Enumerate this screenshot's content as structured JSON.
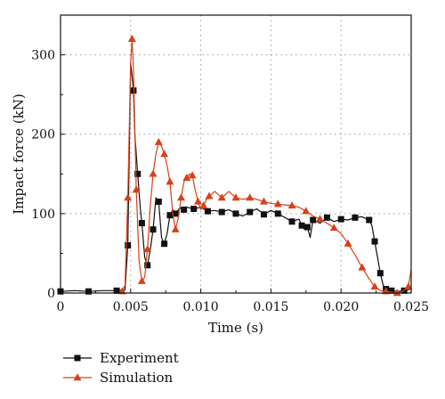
{
  "chart_data": {
    "type": "line",
    "title": "",
    "xlabel": "Time (s)",
    "ylabel": "Impact force (kN)",
    "xlim": [
      0,
      0.025
    ],
    "ylim": [
      0,
      350
    ],
    "x_ticks": [
      0,
      0.005,
      0.01,
      0.015,
      0.02,
      0.025
    ],
    "x_tick_labels": [
      "0",
      "0.005",
      "0.010",
      "0.015",
      "0.020",
      "0.025"
    ],
    "y_ticks": [
      0,
      100,
      200,
      300
    ],
    "y_tick_labels": [
      "0",
      "100",
      "200",
      "300"
    ],
    "grid": true,
    "legend_position": "bottom-left, below plot",
    "series": [
      {
        "name": "Experiment",
        "color": "#111111",
        "marker": "square",
        "x": [
          0.0,
          0.001,
          0.002,
          0.003,
          0.004,
          0.0046,
          0.0048,
          0.005,
          0.0052,
          0.0053,
          0.0055,
          0.0057,
          0.0058,
          0.006,
          0.0062,
          0.0064,
          0.0066,
          0.0068,
          0.007,
          0.0072,
          0.0074,
          0.0076,
          0.0078,
          0.008,
          0.0082,
          0.0085,
          0.0088,
          0.009,
          0.0095,
          0.01,
          0.0105,
          0.011,
          0.0115,
          0.012,
          0.0125,
          0.013,
          0.0135,
          0.014,
          0.0145,
          0.015,
          0.0155,
          0.016,
          0.0165,
          0.017,
          0.0172,
          0.0174,
          0.0176,
          0.0178,
          0.018,
          0.0185,
          0.019,
          0.0195,
          0.02,
          0.0205,
          0.021,
          0.0215,
          0.022,
          0.0222,
          0.0224,
          0.0226,
          0.0228,
          0.023,
          0.0232,
          0.0234,
          0.0236,
          0.024,
          0.0245,
          0.025
        ],
        "values": [
          2,
          3,
          2,
          3,
          3,
          4,
          60,
          290,
          255,
          200,
          150,
          105,
          88,
          45,
          35,
          55,
          80,
          120,
          115,
          70,
          62,
          75,
          98,
          105,
          100,
          107,
          105,
          108,
          106,
          108,
          103,
          104,
          102,
          105,
          100,
          97,
          102,
          106,
          99,
          104,
          100,
          95,
          90,
          93,
          85,
          80,
          83,
          70,
          92,
          88,
          95,
          90,
          93,
          92,
          95,
          96,
          92,
          85,
          65,
          45,
          25,
          10,
          5,
          2,
          3,
          2,
          3,
          5
        ]
      },
      {
        "name": "Simulation",
        "color": "#d8401a",
        "marker": "triangle",
        "x": [
          0.0044,
          0.0046,
          0.0048,
          0.005,
          0.0051,
          0.0052,
          0.0054,
          0.0056,
          0.0058,
          0.006,
          0.0062,
          0.0064,
          0.0066,
          0.0068,
          0.007,
          0.0072,
          0.0074,
          0.0076,
          0.0078,
          0.008,
          0.0082,
          0.0084,
          0.0086,
          0.0088,
          0.009,
          0.0092,
          0.0094,
          0.0096,
          0.0098,
          0.01,
          0.0102,
          0.0104,
          0.0106,
          0.011,
          0.0115,
          0.012,
          0.0125,
          0.013,
          0.0135,
          0.014,
          0.0145,
          0.015,
          0.0155,
          0.016,
          0.0165,
          0.017,
          0.0175,
          0.018,
          0.0185,
          0.019,
          0.0195,
          0.02,
          0.0205,
          0.021,
          0.0215,
          0.022,
          0.0224,
          0.0228,
          0.0232,
          0.0236,
          0.024,
          0.0244,
          0.0248,
          0.025
        ],
        "values": [
          2,
          10,
          120,
          290,
          320,
          280,
          130,
          40,
          15,
          20,
          55,
          110,
          150,
          175,
          190,
          185,
          175,
          160,
          140,
          100,
          80,
          95,
          120,
          140,
          145,
          150,
          148,
          130,
          115,
          105,
          110,
          118,
          122,
          128,
          120,
          128,
          120,
          118,
          120,
          118,
          115,
          113,
          112,
          111,
          110,
          108,
          103,
          97,
          93,
          88,
          82,
          75,
          62,
          48,
          32,
          18,
          8,
          3,
          2,
          1,
          0,
          2,
          8,
          30
        ]
      }
    ]
  }
}
